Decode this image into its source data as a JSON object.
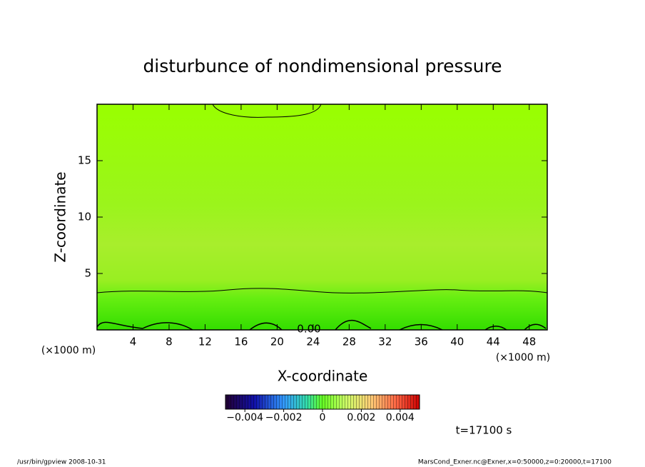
{
  "chart_data": {
    "type": "contour",
    "title": "disturbunce of nondimensional pressure",
    "x_label": "X-coordinate",
    "y_label": "Z-coordinate",
    "x_unit": "(×1000 m)",
    "xlim": [
      0,
      50
    ],
    "xticks": [
      4,
      8,
      12,
      16,
      20,
      24,
      28,
      32,
      36,
      40,
      44,
      48
    ],
    "ylim": [
      0,
      20
    ],
    "yticks": [
      5,
      10,
      15
    ],
    "contour_labels": [
      "0.00"
    ],
    "colorbar": {
      "clim": [
        -0.005,
        0.005
      ],
      "ticks": [
        {
          "value": -0.004,
          "label": "−0.004"
        },
        {
          "value": -0.002,
          "label": "−0.002"
        },
        0,
        {
          "value": 0.002,
          "label": "0.002"
        },
        {
          "value": 0.004,
          "label": "0.004"
        }
      ]
    },
    "annotation": "t=17100 s",
    "footer_left": "/usr/bin/gpview   2008-10-31",
    "footer_right": "MarsCond_Exner.nc@Exner,x=0:50000,z=0:20000,t=17100"
  }
}
